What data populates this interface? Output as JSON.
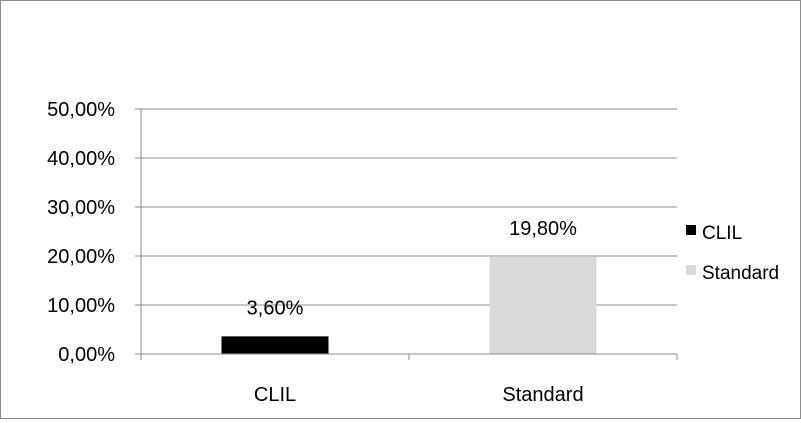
{
  "chart_data": {
    "type": "bar",
    "categories": [
      "CLIL",
      "Standard"
    ],
    "series": [
      {
        "name": "CLIL",
        "color": "#000000",
        "category_index": 0,
        "value": 3.6,
        "label": "3,60%"
      },
      {
        "name": "Standard",
        "color": "#d9d9d9",
        "category_index": 1,
        "value": 19.8,
        "label": "19,80%"
      }
    ],
    "ylim": [
      0,
      50
    ],
    "yticks": [
      {
        "value": 0,
        "label": "0,00%"
      },
      {
        "value": 10,
        "label": "10,00%"
      },
      {
        "value": 20,
        "label": "20,00%"
      },
      {
        "value": 30,
        "label": "30,00%"
      },
      {
        "value": 40,
        "label": "40,00%"
      },
      {
        "value": 50,
        "label": "50,00%"
      }
    ],
    "grid": true,
    "legend": "right"
  }
}
